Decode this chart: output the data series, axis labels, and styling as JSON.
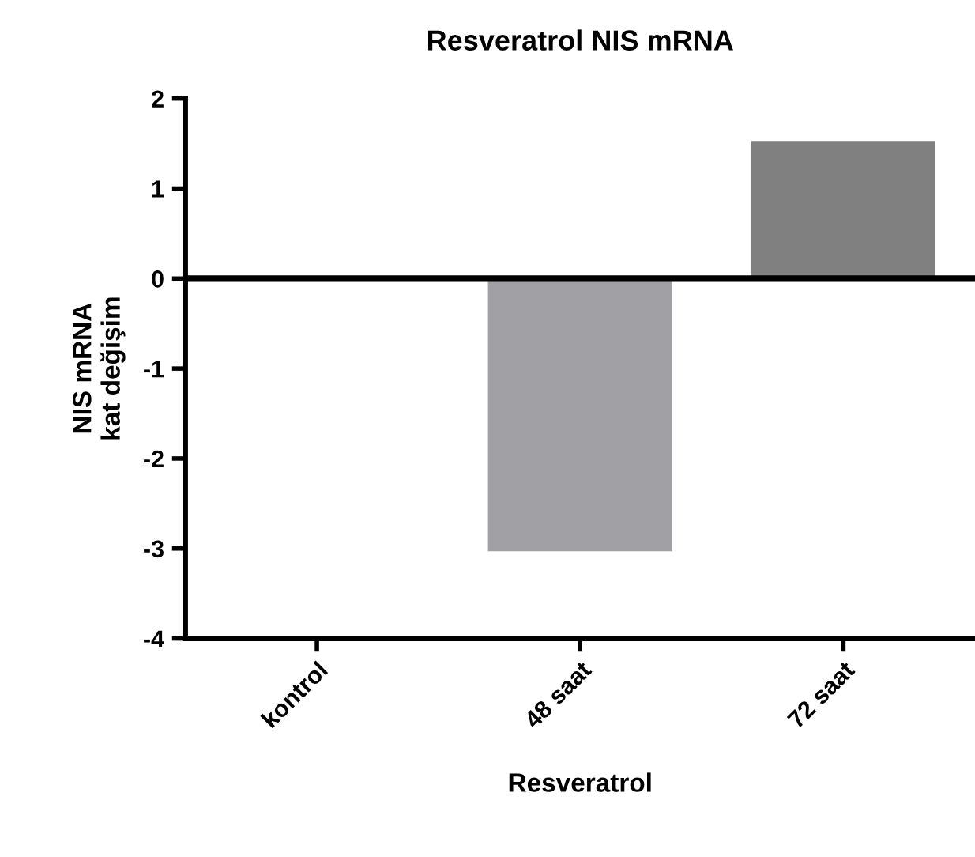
{
  "chart_data": {
    "type": "bar",
    "title": "Resveratrol NIS mRNA",
    "xlabel": "Resveratrol",
    "ylabel": "NIS mRNA\nkat değişim",
    "categories": [
      "kontrol",
      "48 saat",
      "72 saat"
    ],
    "values": [
      0,
      -3.03,
      1.53
    ],
    "colors": [
      "#000000",
      "#a1a0a5",
      "#808080"
    ],
    "ylim": [
      -4,
      2
    ],
    "yticks": [
      -4,
      -3,
      -2,
      -1,
      0,
      1,
      2
    ],
    "ref_lines": [
      {
        "axis": "y",
        "value": 0,
        "color": "#000000"
      }
    ],
    "grid": false,
    "legend": false
  }
}
